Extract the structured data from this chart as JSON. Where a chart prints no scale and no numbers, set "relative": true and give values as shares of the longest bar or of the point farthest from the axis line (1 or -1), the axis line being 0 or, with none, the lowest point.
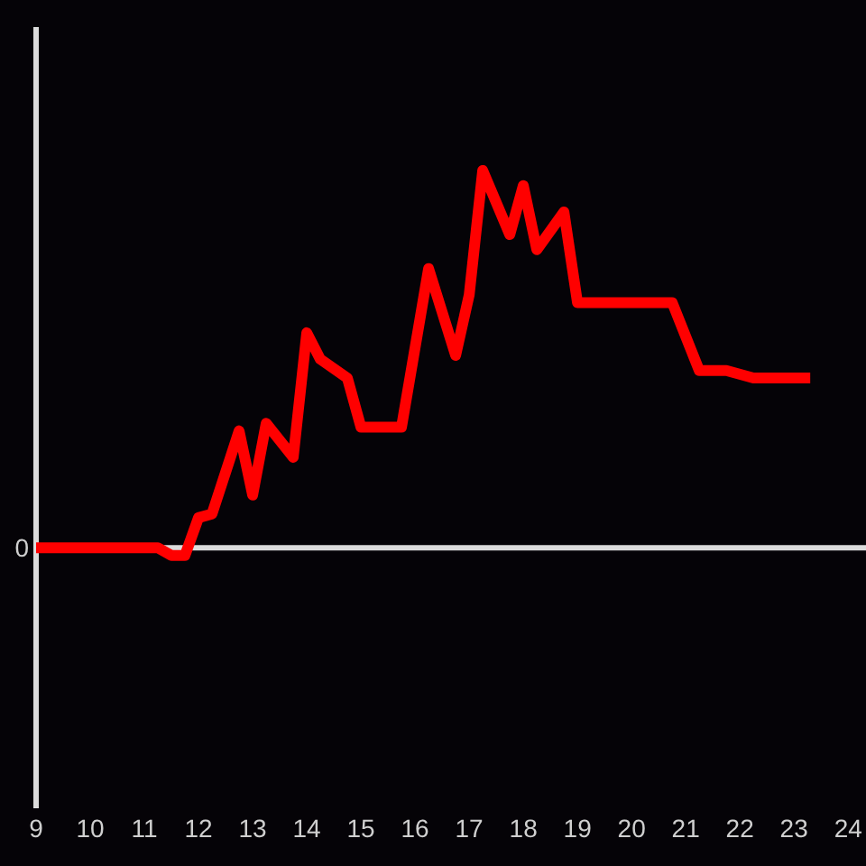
{
  "chart_data": {
    "type": "line",
    "relative": true,
    "x": [
      9,
      11.25,
      11.5,
      11.75,
      12,
      12.25,
      12.75,
      13,
      13.25,
      13.75,
      14,
      14.25,
      14.75,
      15,
      15.75,
      16.25,
      16.75,
      17,
      17.25,
      17.75,
      18,
      18.25,
      18.75,
      19,
      20.75,
      21.25,
      21.75,
      22.25,
      23.3
    ],
    "series": [
      {
        "color": "#ff0000",
        "values": [
          0,
          0,
          -0.02,
          -0.02,
          0.08,
          0.09,
          0.31,
          0.14,
          0.33,
          0.24,
          0.57,
          0.5,
          0.45,
          0.32,
          0.32,
          0.74,
          0.51,
          0.67,
          1,
          0.83,
          0.96,
          0.79,
          0.89,
          0.65,
          0.65,
          0.47,
          0.47,
          0.45,
          0.45
        ]
      }
    ],
    "xlim": [
      9,
      24.33
    ],
    "xticks": [
      9,
      10,
      11,
      12,
      13,
      14,
      15,
      16,
      17,
      18,
      19,
      20,
      21,
      22,
      23,
      24
    ],
    "ref_lines": [
      {
        "axis": "y",
        "value": 0,
        "label": "0",
        "color": "#dcdcdc"
      }
    ],
    "line_style": "solid"
  }
}
